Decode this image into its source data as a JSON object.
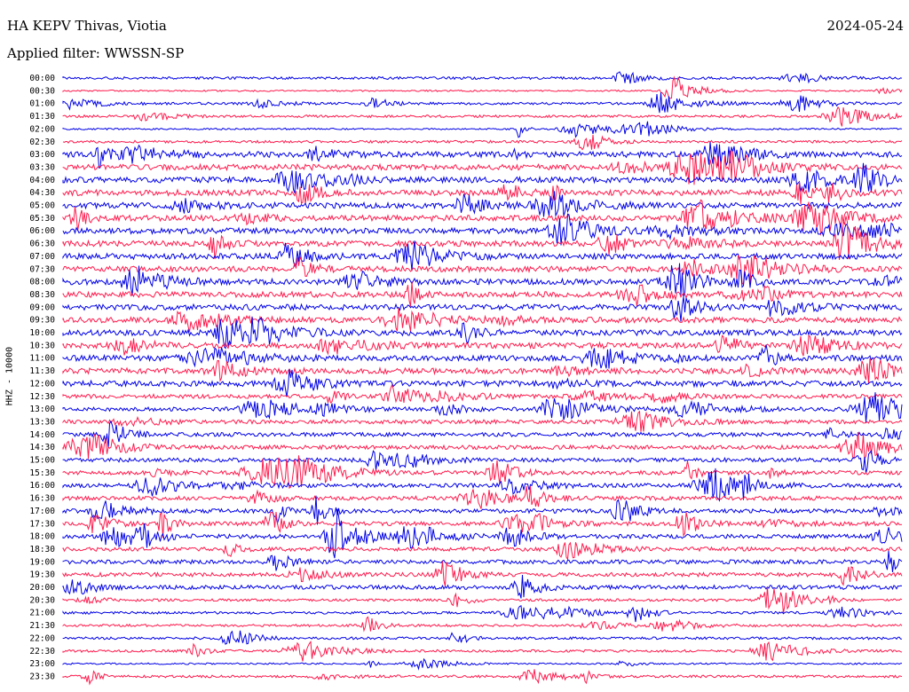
{
  "header": {
    "station": "HA KEPV Thivas, Viotia",
    "date": "2024-05-24",
    "filter": "Applied filter: WWSSN-SP"
  },
  "channel_label": "HHZ - 10000",
  "colors": {
    "odd_trace": "#0000e6",
    "even_trace": "#ff1a4d"
  },
  "chart_data": {
    "type": "line",
    "title": "",
    "ylabel": "HHZ - 10000",
    "grid": false,
    "row_labels": [
      "00:00",
      "00:30",
      "01:00",
      "01:30",
      "02:00",
      "02:30",
      "03:00",
      "03:30",
      "04:00",
      "04:30",
      "05:00",
      "05:30",
      "06:00",
      "06:30",
      "07:00",
      "07:30",
      "08:00",
      "08:30",
      "09:00",
      "09:30",
      "10:00",
      "10:30",
      "11:00",
      "11:30",
      "12:00",
      "12:30",
      "13:00",
      "13:30",
      "14:00",
      "14:30",
      "15:00",
      "15:30",
      "16:00",
      "16:30",
      "17:00",
      "17:30",
      "18:00",
      "18:30",
      "19:00",
      "19:30",
      "20:00",
      "20:30",
      "21:00",
      "21:30",
      "22:00",
      "22:30",
      "23:00",
      "23:30"
    ],
    "row_colors": "alternating blue / red"
  }
}
